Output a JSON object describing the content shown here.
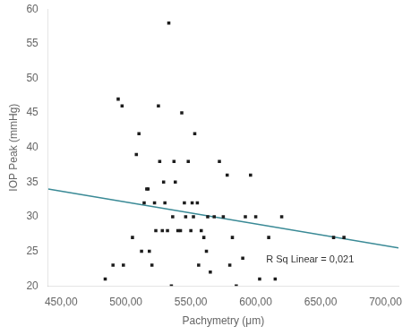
{
  "chart_data": {
    "type": "scatter",
    "x_label": "Pachymetry (μm)",
    "y_label": "IOP Peak (mmHg)",
    "series": [
      {
        "type": "scatter",
        "color": "#1c1c1c",
        "marker": "square",
        "x": [
          484,
          490,
          494,
          497,
          498,
          505,
          508,
          510,
          512,
          514,
          516,
          517,
          518,
          520,
          522,
          523,
          525,
          526,
          528,
          529,
          530,
          532,
          533,
          535,
          536,
          537,
          538,
          540,
          542,
          543,
          545,
          546,
          548,
          550,
          551,
          552,
          553,
          555,
          556,
          558,
          560,
          562,
          563,
          565,
          568,
          572,
          575,
          578,
          580,
          582,
          585,
          590,
          592,
          596,
          600,
          603,
          610,
          615,
          620,
          660,
          668
        ],
        "values": [
          21,
          23,
          47,
          46,
          23,
          27,
          39,
          42,
          25,
          32,
          34,
          34,
          25,
          23,
          32,
          28,
          46,
          38,
          28,
          35,
          32,
          28,
          58,
          20,
          30,
          38,
          35,
          28,
          28,
          45,
          32,
          30,
          38,
          28,
          32,
          30,
          42,
          32,
          23,
          28,
          27,
          25,
          30,
          22,
          30,
          38,
          30,
          36,
          23,
          27,
          20,
          24,
          30,
          36,
          30,
          21,
          27,
          21,
          30,
          27,
          27
        ]
      },
      {
        "type": "line",
        "color": "#3a8a96",
        "line_style": "solid",
        "x": [
          440,
          710
        ],
        "values": [
          34.0,
          25.5
        ]
      }
    ],
    "annotations": [
      {
        "text": "R Sq Linear = 0,021",
        "x": 608,
        "y": 24.5
      }
    ],
    "xlim": [
      440,
      710
    ],
    "ylim": [
      20,
      60
    ],
    "xticks": [
      {
        "value": 450,
        "label": "450,00"
      },
      {
        "value": 500,
        "label": "500,00"
      },
      {
        "value": 550,
        "label": "550,00"
      },
      {
        "value": 600,
        "label": "600,00"
      },
      {
        "value": 650,
        "label": "650,00"
      },
      {
        "value": 700,
        "label": "700,00"
      }
    ],
    "yticks": [
      20,
      25,
      30,
      35,
      40,
      45,
      50,
      55,
      60
    ],
    "grid": false
  }
}
